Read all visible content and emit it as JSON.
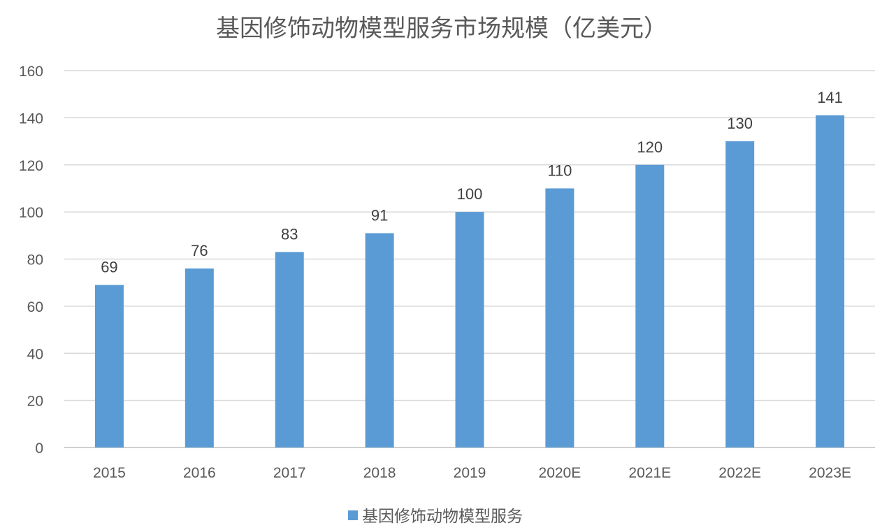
{
  "chart_data": {
    "type": "bar",
    "title": "基因修饰动物模型服务市场规模（亿美元）",
    "xlabel": "",
    "ylabel": "",
    "categories": [
      "2015",
      "2016",
      "2017",
      "2018",
      "2019",
      "2020E",
      "2021E",
      "2022E",
      "2023E"
    ],
    "series": [
      {
        "name": "基因修饰动物模型服务",
        "values": [
          69,
          76,
          83,
          91,
          100,
          110,
          120,
          130,
          141
        ],
        "color": "#5b9bd5"
      }
    ],
    "ylim": [
      0,
      160
    ],
    "yticks": [
      0,
      20,
      40,
      60,
      80,
      100,
      120,
      140,
      160
    ],
    "grid": true,
    "legend_position": "bottom",
    "data_labels": true
  }
}
